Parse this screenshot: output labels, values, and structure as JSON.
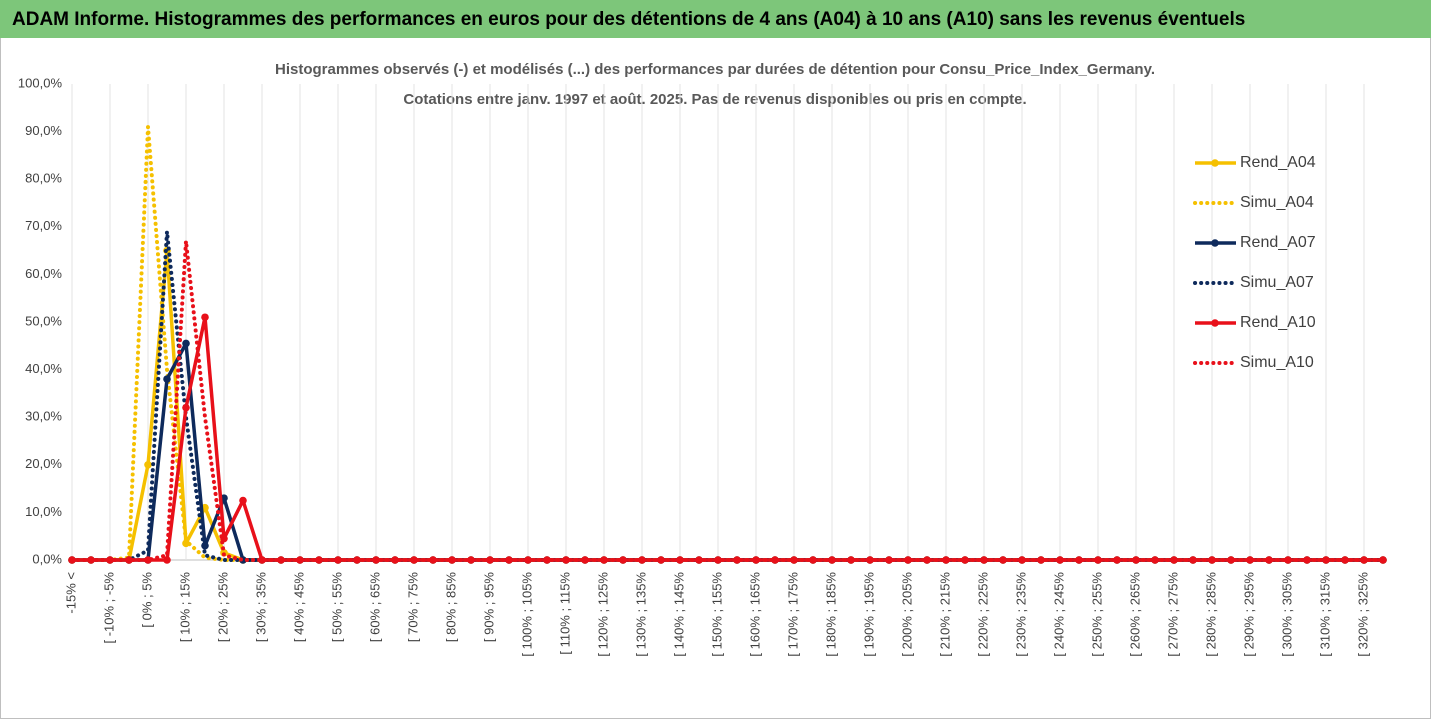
{
  "chart_data": {
    "type": "line",
    "header": "ADAM Informe. Histogrammes des performances en euros pour des détentions de 4 ans (A04) à 10 ans (A10) sans les revenus éventuels",
    "title": [
      "Histogrammes observés (-) et modélisés (...) des performances par durées de détention pour Consu_Price_Index_Germany.",
      "Cotations entre janv. 1997 et août. 2025. Pas de revenus disponibles ou pris en compte."
    ],
    "categories": [
      "-15% <",
      null,
      "[ -10% ; -5%",
      null,
      "[ 0% ; 5%",
      null,
      "[ 10% ; 15%",
      null,
      "[ 20% ; 25%",
      null,
      "[ 30% ; 35%",
      null,
      "[ 40% ; 45%",
      null,
      "[ 50% ; 55%",
      null,
      "[ 60% ; 65%",
      null,
      "[ 70% ; 75%",
      null,
      "[ 80% ; 85%",
      null,
      "[ 90% ; 95%",
      null,
      "[ 100% ; 105%",
      null,
      "[ 110% ; 115%",
      null,
      "[ 120% ; 125%",
      null,
      "[ 130% ; 135%",
      null,
      "[ 140% ; 145%",
      null,
      "[ 150% ; 155%",
      null,
      "[ 160% ; 165%",
      null,
      "[ 170% ; 175%",
      null,
      "[ 180% ; 185%",
      null,
      "[ 190% ; 195%",
      null,
      "[ 200% ; 205%",
      null,
      "[ 210% ; 215%",
      null,
      "[ 220% ; 225%",
      null,
      "[ 230% ; 235%",
      null,
      "[ 240% ; 245%",
      null,
      "[ 250% ; 255%",
      null,
      "[ 260% ; 265%",
      null,
      "[ 270% ; 275%",
      null,
      "[ 280% ; 285%",
      null,
      "[ 290% ; 295%",
      null,
      "[ 300% ; 305%",
      null,
      "[ 310% ; 315%",
      null,
      "[ 320% ; 325%",
      null
    ],
    "series": [
      {
        "name": "Rend_A04",
        "color": "#f5c000",
        "line_style": "solid",
        "markers": true,
        "values": [
          0,
          0,
          0,
          0,
          20,
          65,
          3.5,
          11,
          1.5,
          0,
          0,
          0,
          0,
          0,
          0,
          0,
          0,
          0,
          0,
          0,
          0,
          0,
          0,
          0,
          0,
          0,
          0,
          0,
          0,
          0,
          0,
          0,
          0,
          0,
          0,
          0,
          0,
          0,
          0,
          0,
          0,
          0,
          0,
          0,
          0,
          0,
          0,
          0,
          0,
          0,
          0,
          0,
          0,
          0,
          0,
          0,
          0,
          0,
          0,
          0,
          0,
          0,
          0,
          0,
          0,
          0,
          0,
          0,
          0,
          0
        ]
      },
      {
        "name": "Simu_A04",
        "color": "#f5c000",
        "line_style": "dotted",
        "markers": false,
        "values": [
          0,
          0,
          0,
          0.5,
          91,
          40,
          4,
          0.5,
          0,
          0,
          0,
          0,
          0,
          0,
          0,
          0,
          0,
          0,
          0,
          0,
          0,
          0,
          0,
          0,
          0,
          0,
          0,
          0,
          0,
          0,
          0,
          0,
          0,
          0,
          0,
          0,
          0,
          0,
          0,
          0,
          0,
          0,
          0,
          0,
          0,
          0,
          0,
          0,
          0,
          0,
          0,
          0,
          0,
          0,
          0,
          0,
          0,
          0,
          0,
          0,
          0,
          0,
          0,
          0,
          0,
          0,
          0,
          0,
          0,
          0
        ]
      },
      {
        "name": "Rend_A07",
        "color": "#0e2a5c",
        "line_style": "solid",
        "markers": true,
        "values": [
          0,
          0,
          0,
          0,
          0,
          38,
          45.5,
          3,
          13,
          0,
          0,
          0,
          0,
          0,
          0,
          0,
          0,
          0,
          0,
          0,
          0,
          0,
          0,
          0,
          0,
          0,
          0,
          0,
          0,
          0,
          0,
          0,
          0,
          0,
          0,
          0,
          0,
          0,
          0,
          0,
          0,
          0,
          0,
          0,
          0,
          0,
          0,
          0,
          0,
          0,
          0,
          0,
          0,
          0,
          0,
          0,
          0,
          0,
          0,
          0,
          0,
          0,
          0,
          0,
          0,
          0,
          0,
          0,
          0,
          0
        ]
      },
      {
        "name": "Simu_A07",
        "color": "#0e2a5c",
        "line_style": "dotted",
        "markers": false,
        "values": [
          0,
          0,
          0,
          0,
          2,
          69,
          30,
          1,
          0,
          0,
          0,
          0,
          0,
          0,
          0,
          0,
          0,
          0,
          0,
          0,
          0,
          0,
          0,
          0,
          0,
          0,
          0,
          0,
          0,
          0,
          0,
          0,
          0,
          0,
          0,
          0,
          0,
          0,
          0,
          0,
          0,
          0,
          0,
          0,
          0,
          0,
          0,
          0,
          0,
          0,
          0,
          0,
          0,
          0,
          0,
          0,
          0,
          0,
          0,
          0,
          0,
          0,
          0,
          0,
          0,
          0,
          0,
          0,
          0,
          0
        ]
      },
      {
        "name": "Rend_A10",
        "color": "#e8101a",
        "line_style": "solid",
        "markers": true,
        "values": [
          0,
          0,
          0,
          0,
          0,
          0,
          32,
          51,
          4.5,
          12.5,
          0,
          0,
          0,
          0,
          0,
          0,
          0,
          0,
          0,
          0,
          0,
          0,
          0,
          0,
          0,
          0,
          0,
          0,
          0,
          0,
          0,
          0,
          0,
          0,
          0,
          0,
          0,
          0,
          0,
          0,
          0,
          0,
          0,
          0,
          0,
          0,
          0,
          0,
          0,
          0,
          0,
          0,
          0,
          0,
          0,
          0,
          0,
          0,
          0,
          0,
          0,
          0,
          0,
          0,
          0,
          0,
          0,
          0,
          0,
          0
        ]
      },
      {
        "name": "Simu_A10",
        "color": "#e8101a",
        "line_style": "dotted",
        "markers": false,
        "values": [
          0,
          0,
          0,
          0,
          0,
          1,
          67,
          30,
          1,
          0,
          0,
          0,
          0,
          0,
          0,
          0,
          0,
          0,
          0,
          0,
          0,
          0,
          0,
          0,
          0,
          0,
          0,
          0,
          0,
          0,
          0,
          0,
          0,
          0,
          0,
          0,
          0,
          0,
          0,
          0,
          0,
          0,
          0,
          0,
          0,
          0,
          0,
          0,
          0,
          0,
          0,
          0,
          0,
          0,
          0,
          0,
          0,
          0,
          0,
          0,
          0,
          0,
          0,
          0,
          0,
          0,
          0,
          0,
          0,
          0
        ]
      }
    ],
    "ylim": [
      0,
      100
    ],
    "yticks": [
      {
        "value": 0,
        "label": "0,0%"
      },
      {
        "value": 10,
        "label": "10,0%"
      },
      {
        "value": 20,
        "label": "20,0%"
      },
      {
        "value": 30,
        "label": "30,0%"
      },
      {
        "value": 40,
        "label": "40,0%"
      },
      {
        "value": 50,
        "label": "50,0%"
      },
      {
        "value": 60,
        "label": "60,0%"
      },
      {
        "value": 70,
        "label": "70,0%"
      },
      {
        "value": 80,
        "label": "80,0%"
      },
      {
        "value": 90,
        "label": "90,0%"
      },
      {
        "value": 100,
        "label": "100,0%"
      }
    ],
    "grid": "vertical",
    "legend": "right"
  }
}
